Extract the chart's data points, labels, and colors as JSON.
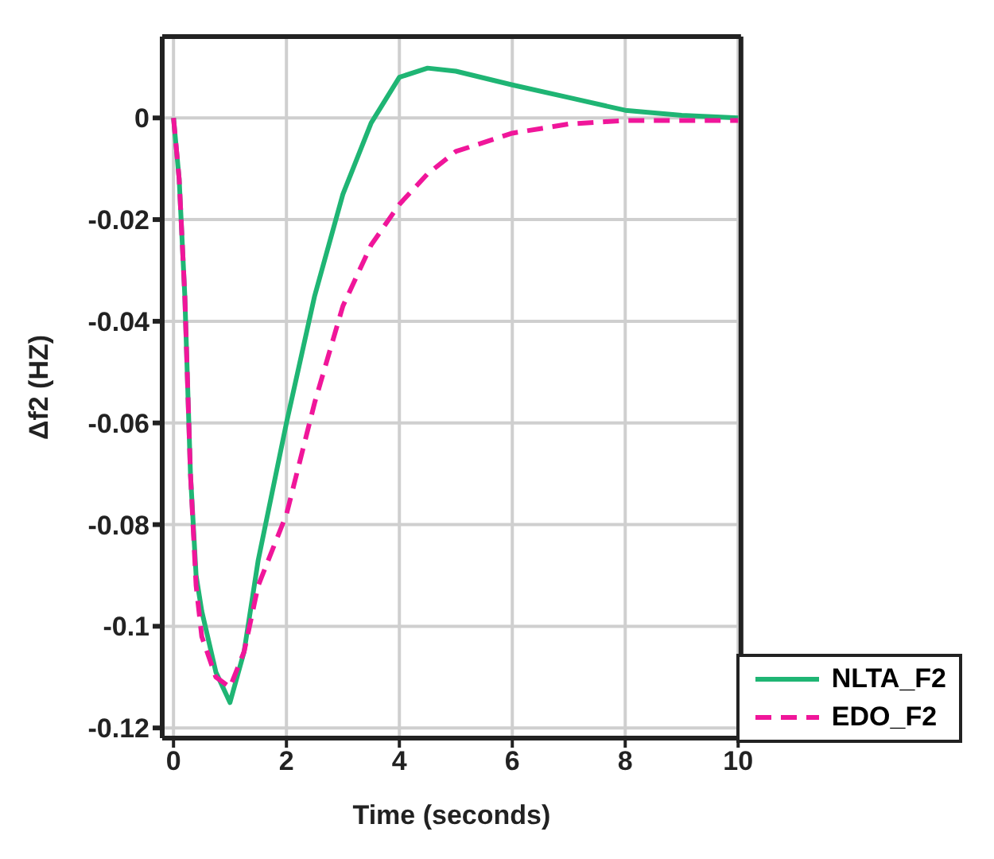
{
  "chart_data": {
    "type": "line",
    "xlabel": "Time (seconds)",
    "ylabel": "Δf2 (HZ)",
    "x": [
      0,
      0.1,
      0.2,
      0.3,
      0.4,
      0.5,
      0.75,
      1,
      1.25,
      1.5,
      2,
      2.5,
      3,
      3.5,
      4,
      4.5,
      5,
      6,
      7,
      8,
      9,
      10
    ],
    "series": [
      {
        "name": "NLTA_F2",
        "color": "#1fb574",
        "line_style": "solid",
        "values": [
          0,
          -0.012,
          -0.035,
          -0.07,
          -0.09,
          -0.097,
          -0.109,
          -0.115,
          -0.105,
          -0.087,
          -0.06,
          -0.035,
          -0.015,
          -0.001,
          0.008,
          0.0098,
          0.0092,
          0.0065,
          0.004,
          0.0015,
          0.0005,
          0
        ]
      },
      {
        "name": "EDO_F2",
        "color": "#f0169a",
        "line_style": "dashed",
        "values": [
          0,
          -0.012,
          -0.035,
          -0.07,
          -0.092,
          -0.102,
          -0.11,
          -0.112,
          -0.105,
          -0.092,
          -0.078,
          -0.056,
          -0.037,
          -0.025,
          -0.017,
          -0.011,
          -0.0066,
          -0.003,
          -0.0012,
          -0.0005,
          -0.0005,
          -0.0005
        ]
      }
    ],
    "xlim": [
      -0.2,
      10.05
    ],
    "xticks": [
      0,
      2,
      4,
      6,
      8,
      10
    ],
    "ylim": [
      -0.122,
      0.016
    ],
    "yticks": [
      -0.12,
      -0.1,
      -0.08,
      -0.06,
      -0.04,
      -0.02,
      0
    ],
    "grid": true,
    "legend": "bottom right",
    "marker": "none"
  }
}
